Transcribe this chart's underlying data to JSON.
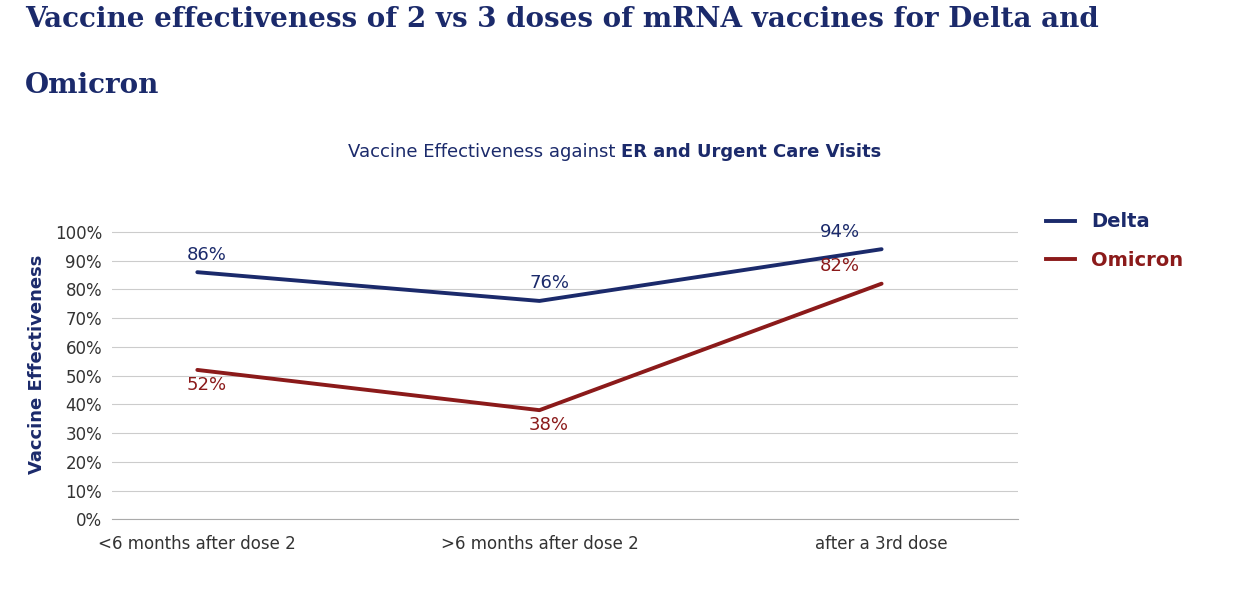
{
  "title_line1": "Vaccine effectiveness of 2 vs 3 doses of mRNA vaccines for Delta and",
  "title_line2": "Omicron",
  "subtitle_plain": "Vaccine Effectiveness against ",
  "subtitle_bold": "ER and Urgent Care Visits",
  "ylabel": "Vaccine Effectiveness",
  "x_labels": [
    "<6 months after dose 2",
    ">6 months after dose 2",
    "after a 3rd dose"
  ],
  "delta_values": [
    86,
    76,
    94
  ],
  "omicron_values": [
    52,
    38,
    82
  ],
  "delta_labels": [
    "86%",
    "76%",
    "94%"
  ],
  "omicron_labels": [
    "52%",
    "38%",
    "82%"
  ],
  "delta_color": "#1b2a6b",
  "omicron_color": "#8b1a1a",
  "background_color": "#ffffff",
  "grid_color": "#cccccc",
  "title_color": "#1b2a6b",
  "yticks": [
    0,
    10,
    20,
    30,
    40,
    50,
    60,
    70,
    80,
    90,
    100
  ],
  "ylim": [
    0,
    108
  ],
  "legend_delta": "Delta",
  "legend_omicron": "Omicron",
  "title_fontsize": 20,
  "subtitle_fontsize": 13,
  "axis_fontsize": 12,
  "label_fontsize": 13
}
